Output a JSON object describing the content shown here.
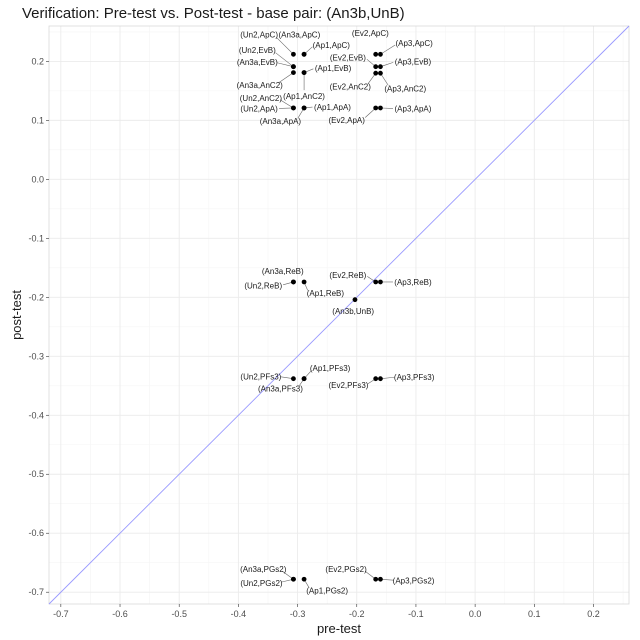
{
  "chart_data": {
    "type": "scatter",
    "title": "Verification: Pre-test vs. Post-test - base pair: (An3b,UnB)",
    "xlabel": "pre-test",
    "ylabel": "post-test",
    "xlim": [
      -0.72,
      0.26
    ],
    "ylim": [
      -0.72,
      0.26
    ],
    "x_ticks": [
      "-0.7",
      "-0.6",
      "-0.5",
      "-0.4",
      "-0.3",
      "-0.2",
      "-0.1",
      "0.0",
      "0.1",
      "0.2"
    ],
    "y_ticks": [
      "-0.7",
      "-0.6",
      "-0.5",
      "-0.4",
      "-0.3",
      "-0.2",
      "-0.1",
      "0.0",
      "0.1",
      "0.2"
    ],
    "grid": true,
    "reference_line": {
      "slope": 1,
      "intercept": 0,
      "color": "#9999ff"
    },
    "point_color": "#000000",
    "points": [
      {
        "label": "(Un2,ApC)",
        "x": -0.307,
        "y": 0.212,
        "lx": -0.365,
        "ly": 0.246
      },
      {
        "label": "(An3a,ApC)",
        "x": -0.289,
        "y": 0.212,
        "lx": -0.297,
        "ly": 0.246
      },
      {
        "label": "(Ap1,ApC)",
        "x": -0.289,
        "y": 0.212,
        "lx": -0.243,
        "ly": 0.228
      },
      {
        "label": "(Un2,EvB)",
        "x": -0.307,
        "y": 0.191,
        "lx": -0.368,
        "ly": 0.219
      },
      {
        "label": "(An3a,EvB)",
        "x": -0.307,
        "y": 0.191,
        "lx": -0.368,
        "ly": 0.199
      },
      {
        "label": "(Ap1,EvB)",
        "x": -0.289,
        "y": 0.181,
        "lx": -0.24,
        "ly": 0.189
      },
      {
        "label": "(An3a,AnC2)",
        "x": -0.307,
        "y": 0.181,
        "lx": -0.364,
        "ly": 0.16
      },
      {
        "label": "(Ap1,AnC2)",
        "x": -0.289,
        "y": 0.181,
        "lx": -0.289,
        "ly": 0.141
      },
      {
        "label": "(Un2,AnC2)",
        "x": -0.307,
        "y": 0.121,
        "lx": -0.362,
        "ly": 0.138
      },
      {
        "label": "(Un2,ApA)",
        "x": -0.307,
        "y": 0.121,
        "lx": -0.365,
        "ly": 0.12
      },
      {
        "label": "(Ap1,ApA)",
        "x": -0.289,
        "y": 0.121,
        "lx": -0.241,
        "ly": 0.123
      },
      {
        "label": "(An3a,ApA)",
        "x": -0.289,
        "y": 0.121,
        "lx": -0.329,
        "ly": 0.099
      },
      {
        "label": "(Ev2,ApC)",
        "x": -0.168,
        "y": 0.212,
        "lx": -0.177,
        "ly": 0.248
      },
      {
        "label": "(Ap3,ApC)",
        "x": -0.16,
        "y": 0.212,
        "lx": -0.103,
        "ly": 0.231
      },
      {
        "label": "(Ev2,EvB)",
        "x": -0.168,
        "y": 0.191,
        "lx": -0.215,
        "ly": 0.207
      },
      {
        "label": "(Ap3,EvB)",
        "x": -0.16,
        "y": 0.191,
        "lx": -0.105,
        "ly": 0.2
      },
      {
        "label": "(Ev2,AnC2)",
        "x": -0.168,
        "y": 0.18,
        "lx": -0.211,
        "ly": 0.157
      },
      {
        "label": "(Ap3,AnC2)",
        "x": -0.16,
        "y": 0.18,
        "lx": -0.118,
        "ly": 0.154
      },
      {
        "label": "(Ev2,ApA)",
        "x": -0.168,
        "y": 0.121,
        "lx": -0.217,
        "ly": 0.101
      },
      {
        "label": "(Ap3,ApA)",
        "x": -0.16,
        "y": 0.121,
        "lx": -0.105,
        "ly": 0.12
      },
      {
        "label": "(An3a,ReB)",
        "x": -0.307,
        "y": -0.174,
        "lx": -0.325,
        "ly": -0.155
      },
      {
        "label": "(Un2,ReB)",
        "x": -0.307,
        "y": -0.174,
        "lx": -0.358,
        "ly": -0.18
      },
      {
        "label": "(Ap1,ReB)",
        "x": -0.289,
        "y": -0.174,
        "lx": -0.253,
        "ly": -0.193
      },
      {
        "label": "(Ev2,ReB)",
        "x": -0.168,
        "y": -0.174,
        "lx": -0.215,
        "ly": -0.162
      },
      {
        "label": "(Ap3,ReB)",
        "x": -0.16,
        "y": -0.174,
        "lx": -0.105,
        "ly": -0.174
      },
      {
        "label": "(An3b,UnB)",
        "x": -0.203,
        "y": -0.204,
        "lx": -0.206,
        "ly": -0.223
      },
      {
        "label": "(Ap1,PFs3)",
        "x": -0.289,
        "y": -0.338,
        "lx": -0.245,
        "ly": -0.32
      },
      {
        "label": "(Un2,PFs3)",
        "x": -0.307,
        "y": -0.338,
        "lx": -0.362,
        "ly": -0.334
      },
      {
        "label": "(An3a,PFs3)",
        "x": -0.289,
        "y": -0.338,
        "lx": -0.329,
        "ly": -0.355
      },
      {
        "label": "(Ev2,PFs3)",
        "x": -0.168,
        "y": -0.338,
        "lx": -0.214,
        "ly": -0.349
      },
      {
        "label": "(Ap3,PFs3)",
        "x": -0.16,
        "y": -0.338,
        "lx": -0.103,
        "ly": -0.335
      },
      {
        "label": "(An3a,PGs2)",
        "x": -0.307,
        "y": -0.678,
        "lx": -0.358,
        "ly": -0.661
      },
      {
        "label": "(Un2,PGs2)",
        "x": -0.307,
        "y": -0.678,
        "lx": -0.361,
        "ly": -0.684
      },
      {
        "label": "(Ap1,PGs2)",
        "x": -0.289,
        "y": -0.678,
        "lx": -0.25,
        "ly": -0.697
      },
      {
        "label": "(Ev2,PGs2)",
        "x": -0.168,
        "y": -0.678,
        "lx": -0.218,
        "ly": -0.661
      },
      {
        "label": "(Ap3,PGs2)",
        "x": -0.16,
        "y": -0.678,
        "lx": -0.104,
        "ly": -0.68
      }
    ]
  }
}
